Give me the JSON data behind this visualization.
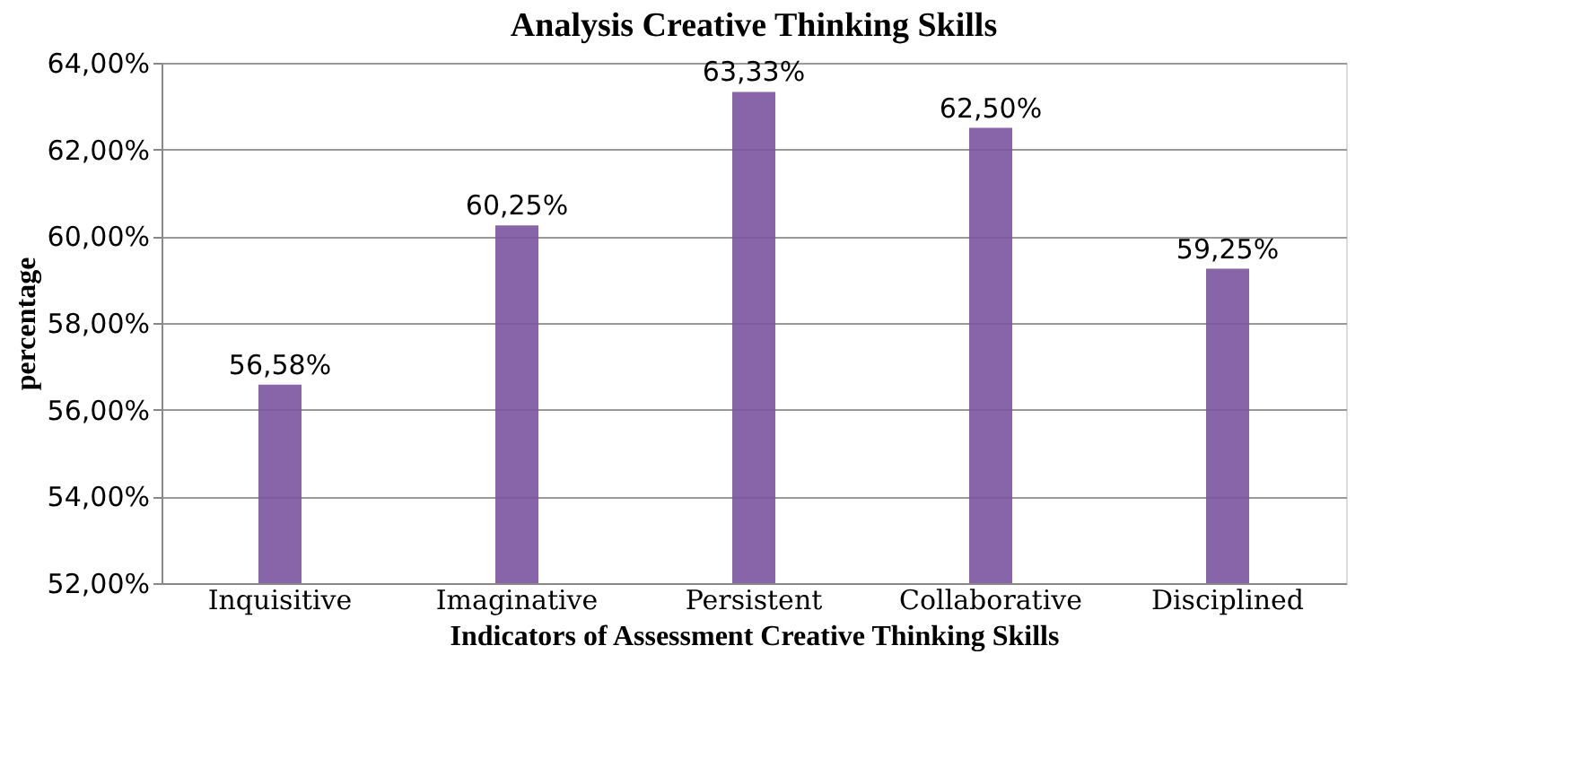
{
  "chart_data": {
    "type": "bar",
    "title": "Analysis Creative Thinking Skills",
    "xlabel": "Indicators of Assessment Creative Thinking Skills",
    "ylabel": "percentage",
    "categories": [
      "Inquisitive",
      "Imaginative",
      "Persistent",
      "Collaborative",
      "Disciplined"
    ],
    "values": [
      56.58,
      60.25,
      63.33,
      62.5,
      59.25
    ],
    "value_labels": [
      "56,58%",
      "60,25%",
      "63,33%",
      "62,50%",
      "59,25%"
    ],
    "color": "#7b539f",
    "ylim": [
      52,
      64
    ],
    "yticks": [
      {
        "value": 52,
        "label": "52,00%"
      },
      {
        "value": 54,
        "label": "54,00%"
      },
      {
        "value": 56,
        "label": "56,00%"
      },
      {
        "value": 58,
        "label": "58,00%"
      },
      {
        "value": 60,
        "label": "60,00%"
      },
      {
        "value": 62,
        "label": "62,00%"
      },
      {
        "value": 64,
        "label": "64,00%"
      }
    ],
    "grid": "y"
  }
}
